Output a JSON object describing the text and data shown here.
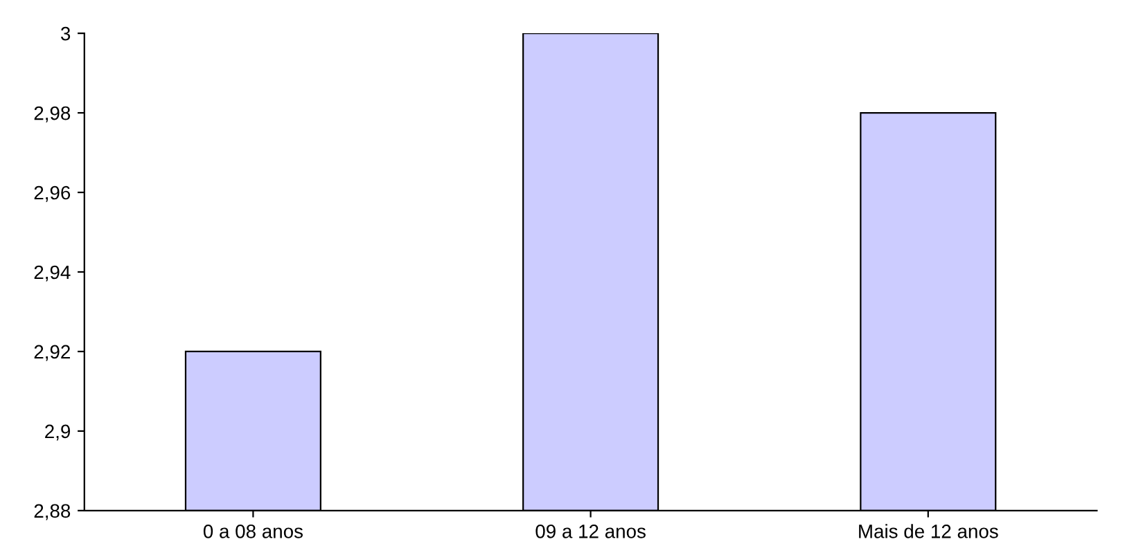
{
  "chart_data": {
    "type": "bar",
    "categories": [
      "0 a 08 anos",
      "09 a 12 anos",
      "Mais de 12 anos"
    ],
    "values": [
      2.92,
      3.0,
      2.98
    ],
    "color": "#ccccff",
    "ylim": [
      2.88,
      3.0
    ],
    "yticks": [
      {
        "value": 2.88,
        "label": "2,88"
      },
      {
        "value": 2.9,
        "label": "2,9"
      },
      {
        "value": 2.92,
        "label": "2,92"
      },
      {
        "value": 2.94,
        "label": "2,94"
      },
      {
        "value": 2.96,
        "label": "2,96"
      },
      {
        "value": 2.98,
        "label": "2,98"
      },
      {
        "value": 3.0,
        "label": "3"
      }
    ],
    "grid": false
  }
}
